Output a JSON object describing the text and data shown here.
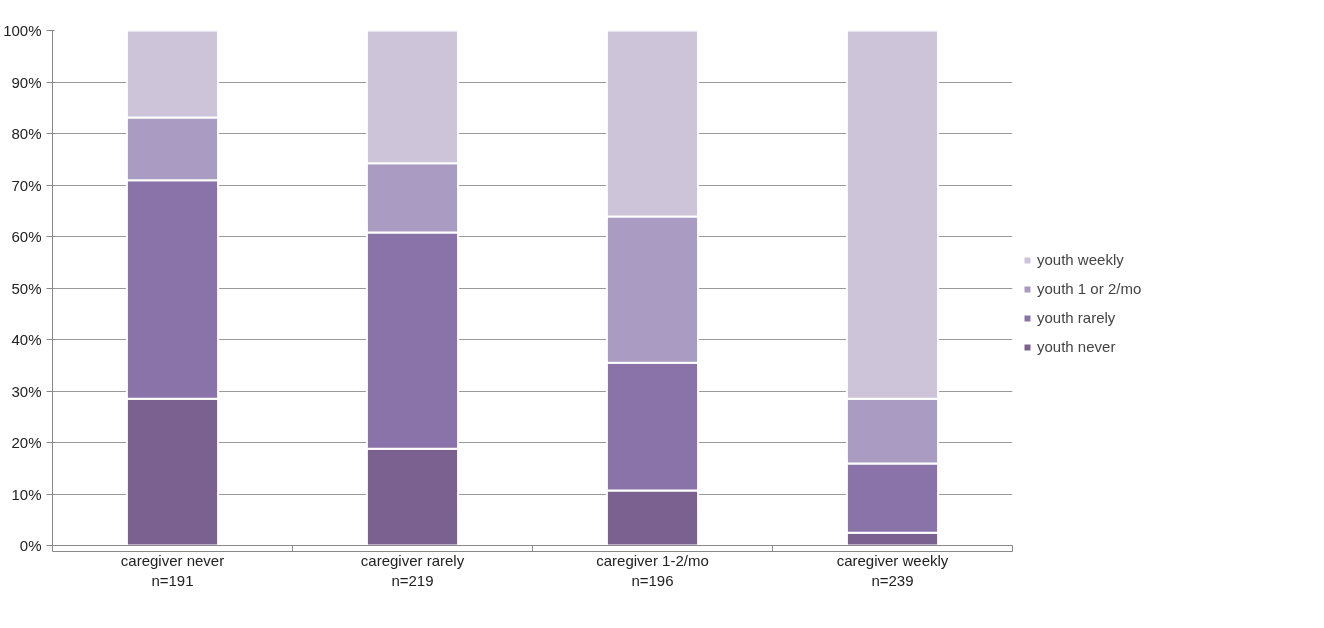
{
  "chart_data": {
    "type": "bar",
    "stacked": true,
    "categories": [
      "caregiver never\nn=191",
      "caregiver rarely\nn=219",
      "caregiver 1-2/mo\nn=196",
      "caregiver weekly\nn=239"
    ],
    "series": [
      {
        "name": "youth never",
        "color": "#7a6190",
        "values": [
          28.5,
          18.8,
          10.7,
          2.5
        ]
      },
      {
        "name": "youth rarely",
        "color": "#8a73a8",
        "values": [
          42.4,
          42.0,
          24.8,
          13.4
        ]
      },
      {
        "name": "youth 1 or 2/mo",
        "color": "#a99bc1",
        "values": [
          12.2,
          13.4,
          28.4,
          12.6
        ]
      },
      {
        "name": "youth weekly",
        "color": "#cdc4da",
        "values": [
          16.9,
          25.8,
          36.1,
          71.5
        ]
      }
    ],
    "ylim": [
      0,
      100
    ],
    "yticks": [
      {
        "value": 0,
        "label": "0%"
      },
      {
        "value": 10,
        "label": "10%"
      },
      {
        "value": 20,
        "label": "20%"
      },
      {
        "value": 30,
        "label": "30%"
      },
      {
        "value": 40,
        "label": "40%"
      },
      {
        "value": 50,
        "label": "50%"
      },
      {
        "value": 60,
        "label": "60%"
      },
      {
        "value": 70,
        "label": "70%"
      },
      {
        "value": 80,
        "label": "80%"
      },
      {
        "value": 90,
        "label": "90%"
      },
      {
        "value": 100,
        "label": "100%"
      }
    ],
    "grid": "y",
    "legend": "right"
  }
}
